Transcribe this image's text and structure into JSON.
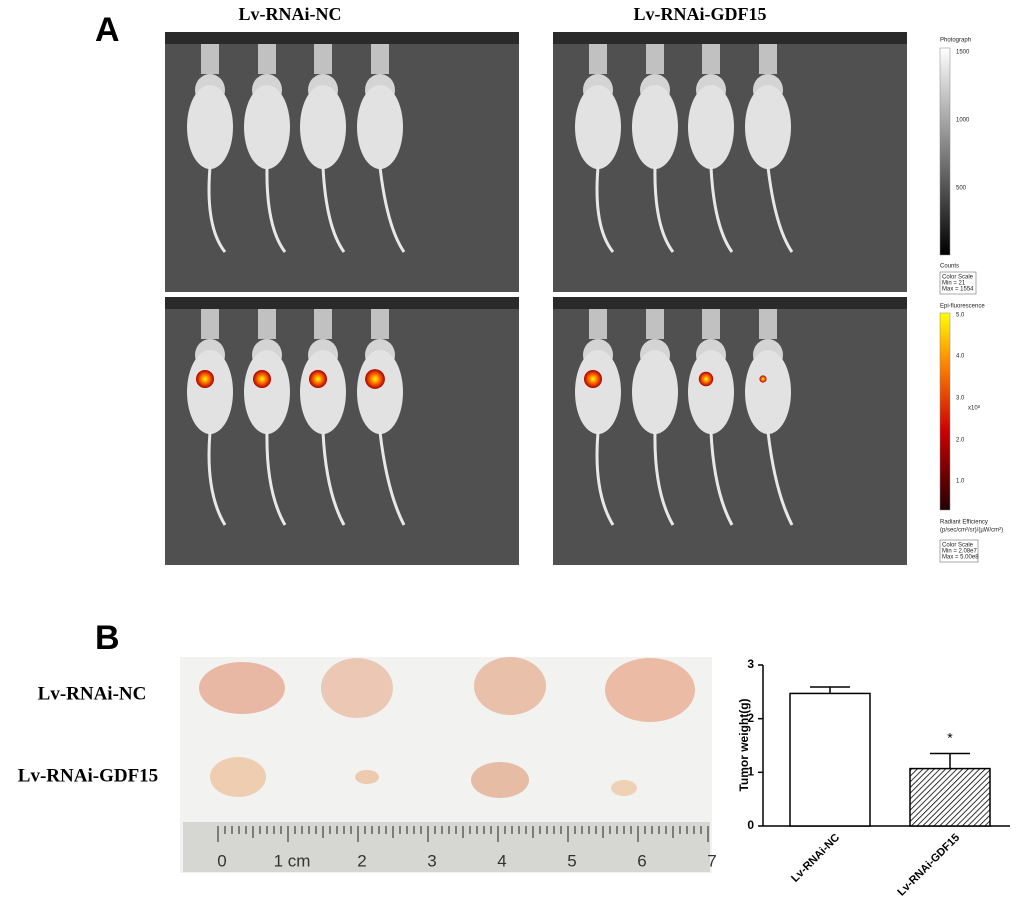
{
  "panel_a": {
    "label": "A",
    "groups": [
      "Lv-RNAi-NC",
      "Lv-RNAi-GDF15"
    ],
    "photo_scale": {
      "title": "Photograph",
      "ticks": [
        "1500",
        "1000",
        "500"
      ],
      "unit": "Counts",
      "box": [
        "Color Scale",
        "Min = 21",
        "Max = 1554"
      ]
    },
    "fluor_scale": {
      "title": "Epi-fluorescence",
      "ticks": [
        "5.0",
        "4.0",
        "3.0",
        "2.0",
        "1.0"
      ],
      "exponent": "x10⁸",
      "unit": "Radiant Efficiency",
      "unit_detail": "(p/sec/cm²/sr)/(µW/cm²)",
      "box": [
        "Color Scale",
        "Min = 2.08e7",
        "Max = 5.00e8"
      ]
    }
  },
  "panel_b": {
    "label": "B",
    "rows": [
      "Lv-RNAi-NC",
      "Lv-RNAi-GDF15"
    ],
    "ruler": [
      "0",
      "1 cm",
      "2",
      "3",
      "4",
      "5",
      "6",
      "7"
    ]
  },
  "chart_data": {
    "type": "bar",
    "y_label": "Tumor weight(g)",
    "categories": [
      "Lv-RNAi-NC",
      "Lv-RNAi-GDF15"
    ],
    "values": [
      2.47,
      1.07
    ],
    "errors": [
      0.12,
      0.28
    ],
    "color": "#000000",
    "patterns": [
      "none",
      "diagonal-hatch"
    ],
    "annotation": "*",
    "ylim": [
      0,
      3
    ],
    "yticks": [
      0,
      1,
      2,
      3
    ]
  }
}
